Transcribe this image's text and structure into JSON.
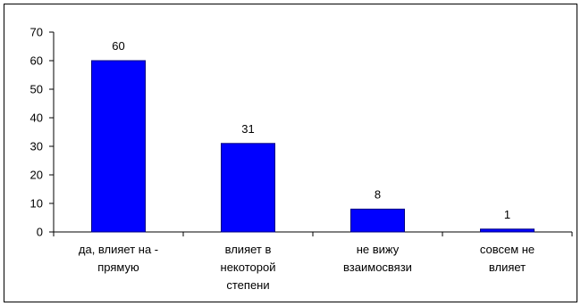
{
  "chart_data": {
    "type": "bar",
    "categories": [
      [
        "да, влияет на -",
        "прямую"
      ],
      [
        "влияет в",
        "некоторой",
        "степени"
      ],
      [
        "не вижу",
        "взаимосвязи"
      ],
      [
        "совсем не",
        "влияет"
      ]
    ],
    "values": [
      60,
      31,
      8,
      1
    ],
    "data_labels": [
      "60",
      "31",
      "8",
      "1"
    ],
    "y_ticks": [
      "0",
      "10",
      "20",
      "30",
      "40",
      "50",
      "60",
      "70"
    ],
    "ylim": [
      0,
      70
    ],
    "y_step": 10,
    "title": "",
    "xlabel": "",
    "ylabel": "",
    "grid": false,
    "legend": "none",
    "bar_color": "#0000FF",
    "bar_border_color": "#000080",
    "axis_color": "#000000"
  }
}
